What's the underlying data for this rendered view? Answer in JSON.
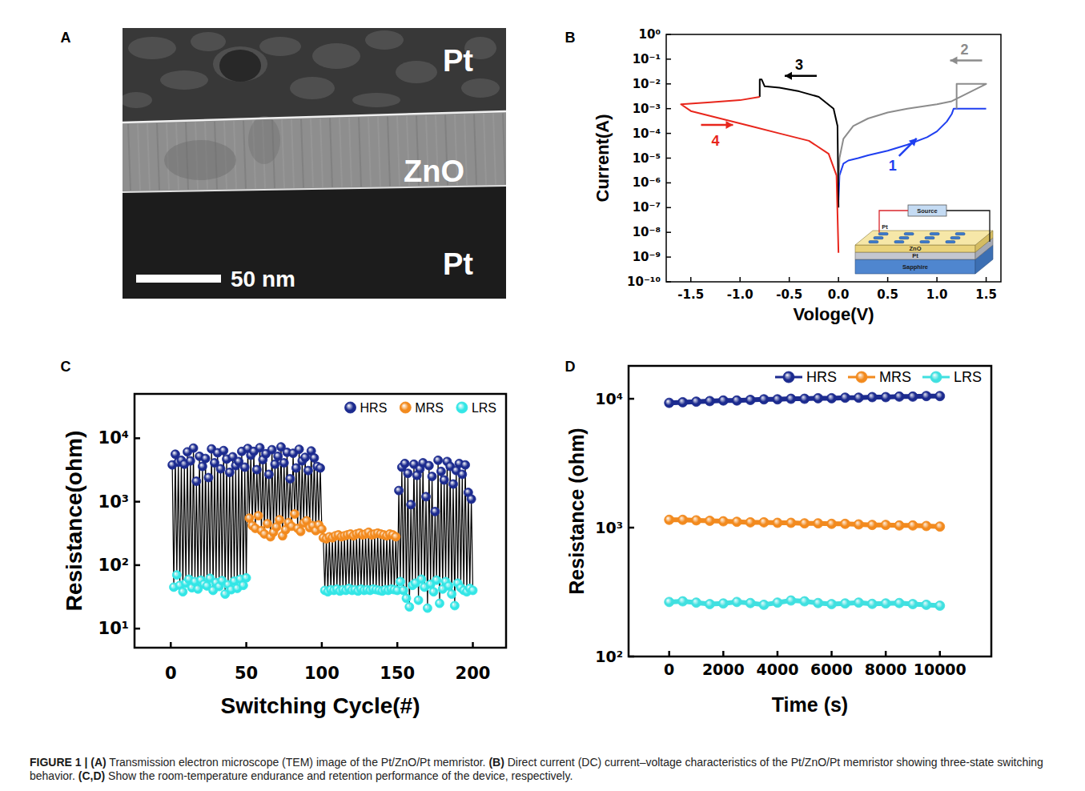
{
  "image_panel": {
    "panel_label": "A",
    "layers": [
      "Pt",
      "ZnO",
      "Pt"
    ],
    "scale_bar": "50 nm"
  },
  "chart_data": [
    {
      "type": "line",
      "panel_label": "B",
      "x_label": "Vologe(V)",
      "y_label": "Current(A)",
      "log": "y",
      "xlim": [
        -1.75,
        1.65
      ],
      "ylim": [
        1e-10,
        1
      ],
      "xticks": [
        -1.5,
        {
          "value": -1,
          "label": "-1.0"
        },
        -0.5,
        {
          "value": 0,
          "label": "0.0"
        },
        0.5,
        {
          "value": 1,
          "label": "1.0"
        },
        1.5
      ],
      "yticks": [
        {
          "value": 1,
          "label": "10⁰"
        },
        {
          "value": 0.1,
          "label": "10⁻¹"
        },
        {
          "value": 0.01,
          "label": "10⁻²"
        },
        {
          "value": 0.001,
          "label": "10⁻³"
        },
        {
          "value": 0.0001,
          "label": "10⁻⁴"
        },
        {
          "value": 1e-05,
          "label": "10⁻⁵"
        },
        {
          "value": 1e-06,
          "label": "10⁻⁶"
        },
        {
          "value": 1e-07,
          "label": "10⁻⁷"
        },
        {
          "value": 1e-08,
          "label": "10⁻⁸"
        },
        {
          "value": 1e-09,
          "label": "10⁻⁹"
        },
        {
          "value": 1e-10,
          "label": "10⁻¹⁰"
        }
      ],
      "series": [
        {
          "color": "#1f3ff0",
          "line_style": "solid",
          "x": [
            0,
            0.01,
            0.05,
            0.1,
            0.2,
            0.3,
            0.5,
            0.7,
            0.9,
            1.0,
            1.1,
            1.15,
            1.17,
            1.5
          ],
          "values": [
            2e-07,
            2e-06,
            6e-06,
            8e-06,
            1e-05,
            1.3e-05,
            2e-05,
            3.5e-05,
            7e-05,
            0.00012,
            0.0003,
            0.0006,
            0.001,
            0.001
          ]
        },
        {
          "color": "#8c8c8c",
          "line_style": "solid",
          "x": [
            1.2,
            1.2,
            1.5,
            1.15,
            1.0,
            0.7,
            0.5,
            0.3,
            0.15,
            0.05,
            0.01,
            0
          ],
          "values": [
            0.001,
            0.01,
            0.01,
            0.002,
            0.0015,
            0.001,
            0.0007,
            0.0004,
            0.0002,
            6e-05,
            1e-05,
            1e-06
          ]
        },
        {
          "color": "#000000",
          "line_style": "solid",
          "x": [
            0,
            -0.01,
            -0.05,
            -0.2,
            -0.4,
            -0.6,
            -0.75,
            -0.78,
            -0.8,
            -0.8
          ],
          "values": [
            1e-07,
            0.0002,
            0.001,
            0.003,
            0.005,
            0.007,
            0.008,
            0.015,
            0.015,
            0.003
          ]
        },
        {
          "color": "#e8261c",
          "line_style": "solid",
          "x": [
            -0.8,
            -1.0,
            -1.3,
            -1.6,
            -1.5,
            -1.2,
            -0.9,
            -0.6,
            -0.3,
            -0.1,
            -0.02,
            0
          ],
          "values": [
            0.003,
            0.0022,
            0.0018,
            0.0015,
            0.0008,
            0.0004,
            0.0002,
            0.0001,
            5e-05,
            1.5e-05,
            2e-06,
            1.5e-09
          ]
        }
      ],
      "annotations": [
        {
          "text": "1",
          "x": 0.55,
          "y": 5e-06
        },
        {
          "text": "2",
          "x": 1.28,
          "y": 0.25
        },
        {
          "text": "3",
          "x": -0.4,
          "y": 0.06
        },
        {
          "text": "4",
          "x": -1.25,
          "y": 5e-05
        }
      ],
      "inset": {
        "labels": [
          "Source",
          "Pt",
          "ZnO",
          "Pt",
          "Sapphire"
        ]
      }
    },
    {
      "type": "line",
      "panel_label": "C",
      "x_label": "Switching Cycle(#)",
      "y_label": "Resistance(ohm)",
      "log": "y",
      "line_style": "joined",
      "legend": "top-right",
      "xlim": [
        -24,
        222
      ],
      "ylim": [
        5,
        50000
      ],
      "xticks": [
        0,
        50,
        100,
        150,
        200
      ],
      "yticks": [
        {
          "value": 10,
          "label": "10¹"
        },
        {
          "value": 100,
          "label": "10²"
        },
        {
          "value": 1000,
          "label": "10³"
        },
        {
          "value": 10000,
          "label": "10⁴"
        }
      ],
      "series": [
        {
          "name": "HRS",
          "color": "#1c2b8f",
          "marker": "circle",
          "x": [
            1,
            3,
            5,
            7,
            9,
            11,
            13,
            15,
            17,
            19,
            21,
            23,
            25,
            27,
            29,
            31,
            33,
            35,
            37,
            39,
            41,
            43,
            45,
            47,
            49,
            51,
            53,
            55,
            57,
            59,
            61,
            63,
            65,
            67,
            69,
            71,
            73,
            75,
            77,
            79,
            81,
            83,
            85,
            87,
            89,
            91,
            93,
            95,
            97,
            99,
            151,
            153,
            155,
            157,
            159,
            161,
            163,
            165,
            167,
            169,
            171,
            173,
            175,
            177,
            179,
            181,
            183,
            185,
            187,
            189,
            191,
            193,
            195,
            197,
            199
          ],
          "values": [
            3800,
            5600,
            4200,
            4500,
            3900,
            6100,
            4400,
            7000,
            2100,
            5200,
            3600,
            4800,
            2400,
            6800,
            4100,
            5900,
            3300,
            6400,
            4700,
            2900,
            5100,
            3700,
            4300,
            6200,
            3500,
            6900,
            5400,
            6200,
            3200,
            7100,
            4600,
            5700,
            2700,
            6600,
            3900,
            5200,
            7300,
            4100,
            6000,
            2300,
            5800,
            3400,
            6700,
            4400,
            5000,
            3100,
            6300,
            4900,
            3600,
            3400,
            1500,
            3500,
            4000,
            2800,
            900,
            3900,
            2600,
            3300,
            4100,
            1200,
            3700,
            2500,
            700,
            4500,
            3000,
            2200,
            4300,
            3600,
            1900,
            3100,
            4000,
            2700,
            3800,
            1400,
            1100
          ]
        },
        {
          "name": "MRS",
          "color": "#f28a1e",
          "marker": "circle",
          "x": [
            52,
            54,
            56,
            58,
            60,
            62,
            64,
            66,
            68,
            70,
            72,
            74,
            76,
            78,
            80,
            82,
            84,
            86,
            88,
            90,
            92,
            94,
            96,
            98,
            100,
            101,
            103,
            105,
            107,
            109,
            111,
            113,
            115,
            117,
            119,
            121,
            123,
            125,
            127,
            129,
            131,
            133,
            135,
            137,
            139,
            141,
            143,
            145,
            147,
            149
          ],
          "values": [
            550,
            420,
            380,
            600,
            350,
            310,
            450,
            280,
            330,
            400,
            520,
            290,
            360,
            470,
            410,
            640,
            380,
            340,
            460,
            500,
            390,
            420,
            350,
            430,
            370,
            270,
            260,
            280,
            270,
            290,
            300,
            280,
            290,
            300,
            310,
            290,
            310,
            320,
            300,
            310,
            330,
            300,
            310,
            320,
            310,
            300,
            290,
            310,
            300,
            280
          ]
        },
        {
          "name": "LRS",
          "color": "#33e6e6",
          "marker": "circle",
          "x": [
            2,
            4,
            6,
            8,
            10,
            12,
            14,
            16,
            18,
            20,
            22,
            24,
            26,
            28,
            30,
            32,
            34,
            36,
            38,
            40,
            42,
            44,
            46,
            48,
            50,
            102,
            104,
            106,
            108,
            110,
            112,
            114,
            116,
            118,
            120,
            122,
            124,
            126,
            128,
            130,
            132,
            134,
            136,
            138,
            140,
            142,
            144,
            146,
            148,
            150,
            152,
            154,
            156,
            158,
            160,
            162,
            164,
            166,
            168,
            170,
            172,
            174,
            176,
            178,
            180,
            182,
            184,
            186,
            188,
            190,
            192,
            194,
            196,
            198,
            200
          ],
          "values": [
            45,
            70,
            48,
            38,
            52,
            60,
            44,
            55,
            42,
            58,
            50,
            47,
            62,
            40,
            53,
            46,
            57,
            35,
            49,
            41,
            56,
            43,
            60,
            48,
            63,
            40,
            38,
            41,
            40,
            42,
            39,
            41,
            40,
            43,
            40,
            41,
            39,
            42,
            40,
            41,
            40,
            42,
            41,
            40,
            39,
            41,
            40,
            42,
            41,
            40,
            55,
            40,
            30,
            22,
            48,
            52,
            28,
            60,
            45,
            21,
            50,
            38,
            58,
            25,
            42,
            55,
            47,
            35,
            23,
            52,
            44,
            40,
            38,
            43,
            40
          ]
        }
      ]
    },
    {
      "type": "line",
      "panel_label": "D",
      "x_label": "Time (s)",
      "y_label": "Resistance (ohm)",
      "log": "y",
      "legend": "top-right",
      "xlim": [
        -1500,
        11900
      ],
      "ylim": [
        100,
        18000
      ],
      "xticks": [
        0,
        2000,
        4000,
        6000,
        8000,
        10000
      ],
      "yticks": [
        {
          "value": 100,
          "label": "10²"
        },
        {
          "value": 1000,
          "label": "10³"
        },
        {
          "value": 10000,
          "label": "10⁴"
        }
      ],
      "x": [
        0,
        500,
        1000,
        1500,
        2000,
        2500,
        3000,
        3500,
        4000,
        4500,
        5000,
        5500,
        6000,
        6500,
        7000,
        7500,
        8000,
        8500,
        9000,
        9500,
        10000
      ],
      "series": [
        {
          "name": "HRS",
          "color": "#1c2b8f",
          "marker": "circle",
          "line_style": "solid",
          "values": [
            9300,
            9400,
            9500,
            9600,
            9700,
            9700,
            9800,
            9900,
            9900,
            10000,
            10000,
            10100,
            10100,
            10200,
            10200,
            10300,
            10300,
            10400,
            10400,
            10500,
            10500
          ]
        },
        {
          "name": "MRS",
          "color": "#f28a1e",
          "marker": "circle",
          "line_style": "solid",
          "values": [
            1150,
            1150,
            1140,
            1130,
            1120,
            1110,
            1100,
            1100,
            1090,
            1090,
            1080,
            1080,
            1070,
            1070,
            1060,
            1050,
            1050,
            1040,
            1040,
            1030,
            1020
          ]
        },
        {
          "name": "LRS",
          "color": "#40e0e0",
          "marker": "circle",
          "line_style": "solid",
          "values": [
            265,
            268,
            262,
            255,
            258,
            265,
            260,
            252,
            262,
            272,
            268,
            260,
            255,
            258,
            262,
            256,
            258,
            260,
            255,
            252,
            248
          ]
        }
      ]
    }
  ],
  "caption": {
    "title": "FIGURE 1 |",
    "parts": [
      {
        "label": "(A)",
        "text": "Transmission electron microscope (TEM) image of the Pt/ZnO/Pt memristor."
      },
      {
        "label": "(B)",
        "text": "Direct current (DC) current–voltage characteristics of the Pt/ZnO/Pt memristor showing three-state switching behavior."
      },
      {
        "label": "(C,D)",
        "text": "Show the room-temperature endurance and retention performance of the device, respectively."
      }
    ]
  }
}
